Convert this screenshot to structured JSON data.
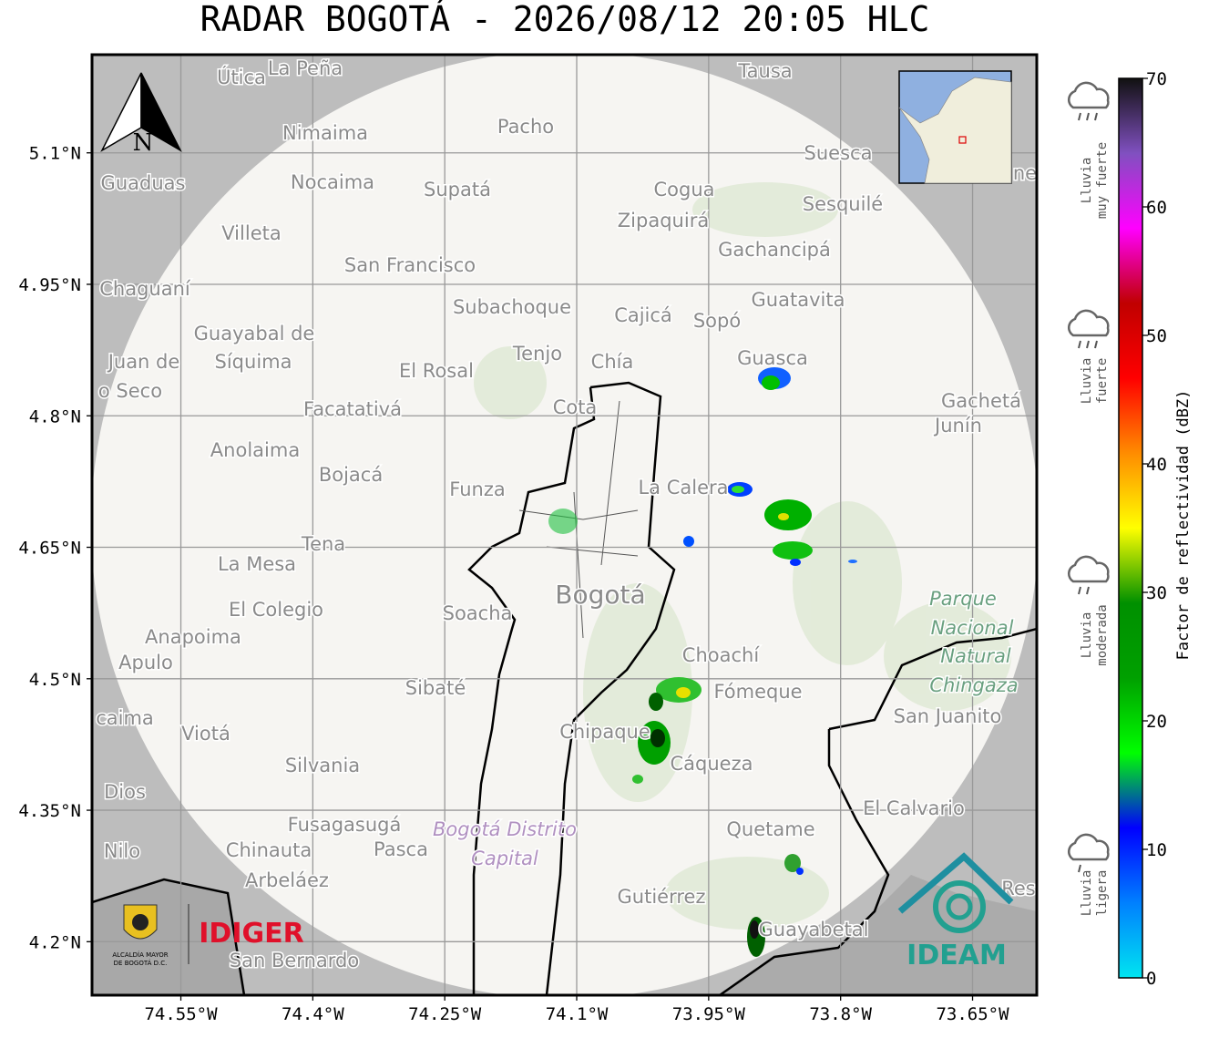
{
  "title": "RADAR BOGOTÁ - 2026/08/12 20:05 HLC",
  "map": {
    "xlim": [
      -74.651,
      -73.577
    ],
    "ylim": [
      4.139,
      5.212
    ],
    "xticks": [
      {
        "value": -74.55,
        "label": "74.55°W"
      },
      {
        "value": -74.4,
        "label": "74.4°W"
      },
      {
        "value": -74.25,
        "label": "74.25°W"
      },
      {
        "value": -74.1,
        "label": "74.1°W"
      },
      {
        "value": -73.95,
        "label": "73.95°W"
      },
      {
        "value": -73.8,
        "label": "73.8°W"
      },
      {
        "value": -73.65,
        "label": "73.65°W"
      }
    ],
    "yticks": [
      {
        "value": 5.1,
        "label": "5.1°N"
      },
      {
        "value": 4.95,
        "label": "4.95°N"
      },
      {
        "value": 4.8,
        "label": "4.8°N"
      },
      {
        "value": 4.65,
        "label": "4.65°N"
      },
      {
        "value": 4.5,
        "label": "4.5°N"
      },
      {
        "value": 4.35,
        "label": "4.35°N"
      },
      {
        "value": 4.2,
        "label": "4.2°N"
      }
    ],
    "grid": true,
    "north_label": "N",
    "places": [
      "Útica",
      "La Peña",
      "Tausa",
      "Pacho",
      "Nimaima",
      "Guaduas",
      "Nocaima",
      "Supatá",
      "Cogua",
      "Suesca",
      "Sesquilé",
      "Zipaquirá",
      "Villeta",
      "Gachancipá",
      "San Francisco",
      "Chaguaní",
      "Guatavita",
      "Subachoque",
      "Cajicá",
      "Sopó",
      "Guayabal de",
      "Síquima",
      "Tenjo",
      "Chía",
      "Guasca",
      "Juan de",
      "El Rosal",
      "o Seco",
      "Gachetá",
      "Junín",
      "Facatativá",
      "Cota",
      "Anolaima",
      "Bojacá",
      "Funza",
      "La Calera",
      "Tena",
      "La Mesa",
      "Bogotá",
      "Parque",
      "Nacional",
      "Natural",
      "Chingaza",
      "El Colegio",
      "Soacha",
      "Anapoima",
      "Apulo",
      "Choachí",
      "Sibaté",
      "Fómeque",
      "San Juanito",
      "caima",
      "Viotá",
      "Chipaque",
      "Cáqueza",
      "Silvania",
      "Dios",
      "El Calvario",
      "Fusagasugá",
      "Bogotá Distrito",
      "Capital",
      "Quetame",
      "Nilo",
      "Chinauta",
      "Pasca",
      "Arbeláez",
      "Res",
      "Gutiérrez",
      "Guayabetal",
      "San Bernardo",
      "ne"
    ]
  },
  "colorbar": {
    "label": "Factor de reflectividad (dBZ)",
    "lim": [
      0,
      70
    ],
    "ticks": [
      0,
      10,
      20,
      30,
      40,
      50,
      60,
      70
    ],
    "colors": [
      "#00e5f0",
      "#0080ff",
      "#0000ff",
      "#00ff00",
      "#00a000",
      "#009000",
      "#ffff00",
      "#ff8c00",
      "#ff0000",
      "#c00000",
      "#ff00ff",
      "#8050c0",
      "#111111"
    ]
  },
  "rain_legend": [
    {
      "lines": [
        "Lluvia",
        "muy fuerte"
      ]
    },
    {
      "lines": [
        "Lluvia",
        "fuerte"
      ]
    },
    {
      "lines": [
        "Lluvia",
        "moderada"
      ]
    },
    {
      "lines": [
        "Lluvia",
        "ligera"
      ]
    }
  ],
  "logos": {
    "alcaldia": [
      "ALCALDÍA MAYOR",
      "DE BOGOTÁ D.C."
    ],
    "idiger": "IDIGER",
    "ideam": "IDEAM"
  }
}
